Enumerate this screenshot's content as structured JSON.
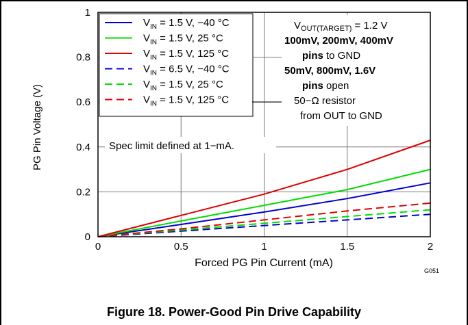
{
  "figure": {
    "code": "G051",
    "caption": "Figure 18. Power-Good Pin Drive Capability"
  },
  "chart_data": {
    "type": "line",
    "xlabel": "Forced PG Pin Current (mA)",
    "ylabel": "PG Pin Voltage (V)",
    "xlim": [
      0,
      2
    ],
    "ylim": [
      0,
      1
    ],
    "xticks": [
      "0",
      "0.5",
      "1",
      "1.5",
      "2"
    ],
    "yticks": [
      "0",
      "0.2",
      "0.4",
      "0.6",
      "0.8",
      "1"
    ],
    "grid": true,
    "legend_position": "top-left",
    "series": [
      {
        "label": [
          "V",
          "IN",
          " = 1.5 V, −40 °C"
        ],
        "color": "#0000cc",
        "dash": "solid",
        "x": [
          0,
          0.5,
          1,
          1.5,
          2
        ],
        "y": [
          0,
          0.055,
          0.11,
          0.17,
          0.24
        ]
      },
      {
        "label": [
          "V",
          "IN",
          " = 1.5 V, 25 °C"
        ],
        "color": "#00dd00",
        "dash": "solid",
        "x": [
          0,
          0.5,
          1,
          1.5,
          2
        ],
        "y": [
          0,
          0.07,
          0.14,
          0.21,
          0.3
        ]
      },
      {
        "label": [
          "V",
          "IN",
          " = 1.5 V, 125 °C"
        ],
        "color": "#dd0000",
        "dash": "solid",
        "x": [
          0,
          0.5,
          1,
          1.5,
          2
        ],
        "y": [
          0,
          0.095,
          0.19,
          0.3,
          0.43
        ]
      },
      {
        "label": [
          "V",
          "IN",
          " = 6.5 V, −40 °C"
        ],
        "color": "#0000cc",
        "dash": "dashed",
        "x": [
          0,
          0.5,
          1,
          1.5,
          2
        ],
        "y": [
          0,
          0.025,
          0.05,
          0.075,
          0.1
        ]
      },
      {
        "label": [
          "V",
          "IN",
          " = 1.5 V, 25 °C"
        ],
        "color": "#00dd00",
        "dash": "dashed",
        "x": [
          0,
          0.5,
          1,
          1.5,
          2
        ],
        "y": [
          0,
          0.03,
          0.06,
          0.09,
          0.12
        ]
      },
      {
        "label": [
          "V",
          "IN",
          " = 1.5 V, 125 °C"
        ],
        "color": "#dd0000",
        "dash": "dashed",
        "x": [
          0,
          0.5,
          1,
          1.5,
          2
        ],
        "y": [
          0,
          0.035,
          0.075,
          0.115,
          0.15
        ]
      }
    ],
    "annotations": {
      "conditions": [
        [
          {
            "t": "V",
            "b": false
          },
          {
            "t": "OUT(TARGET)",
            "b": false,
            "sub": true
          },
          {
            "t": " = 1.2 V",
            "b": false
          }
        ],
        [
          {
            "t": "100mV, 200mV, 400mV",
            "b": true
          }
        ],
        [
          {
            "t": "pins",
            "b": true
          },
          {
            "t": " to GND",
            "b": false
          }
        ],
        [
          {
            "t": "50mV, 800mV, 1.6V",
            "b": true
          }
        ],
        [
          {
            "t": "pins",
            "b": true
          },
          {
            "t": " open",
            "b": false
          }
        ],
        [
          {
            "t": "50−Ω resistor",
            "b": false
          }
        ],
        [
          {
            "t": "from OUT to GND",
            "b": false
          }
        ]
      ],
      "spec_limit": "Spec limit defined at 1−mA."
    }
  }
}
